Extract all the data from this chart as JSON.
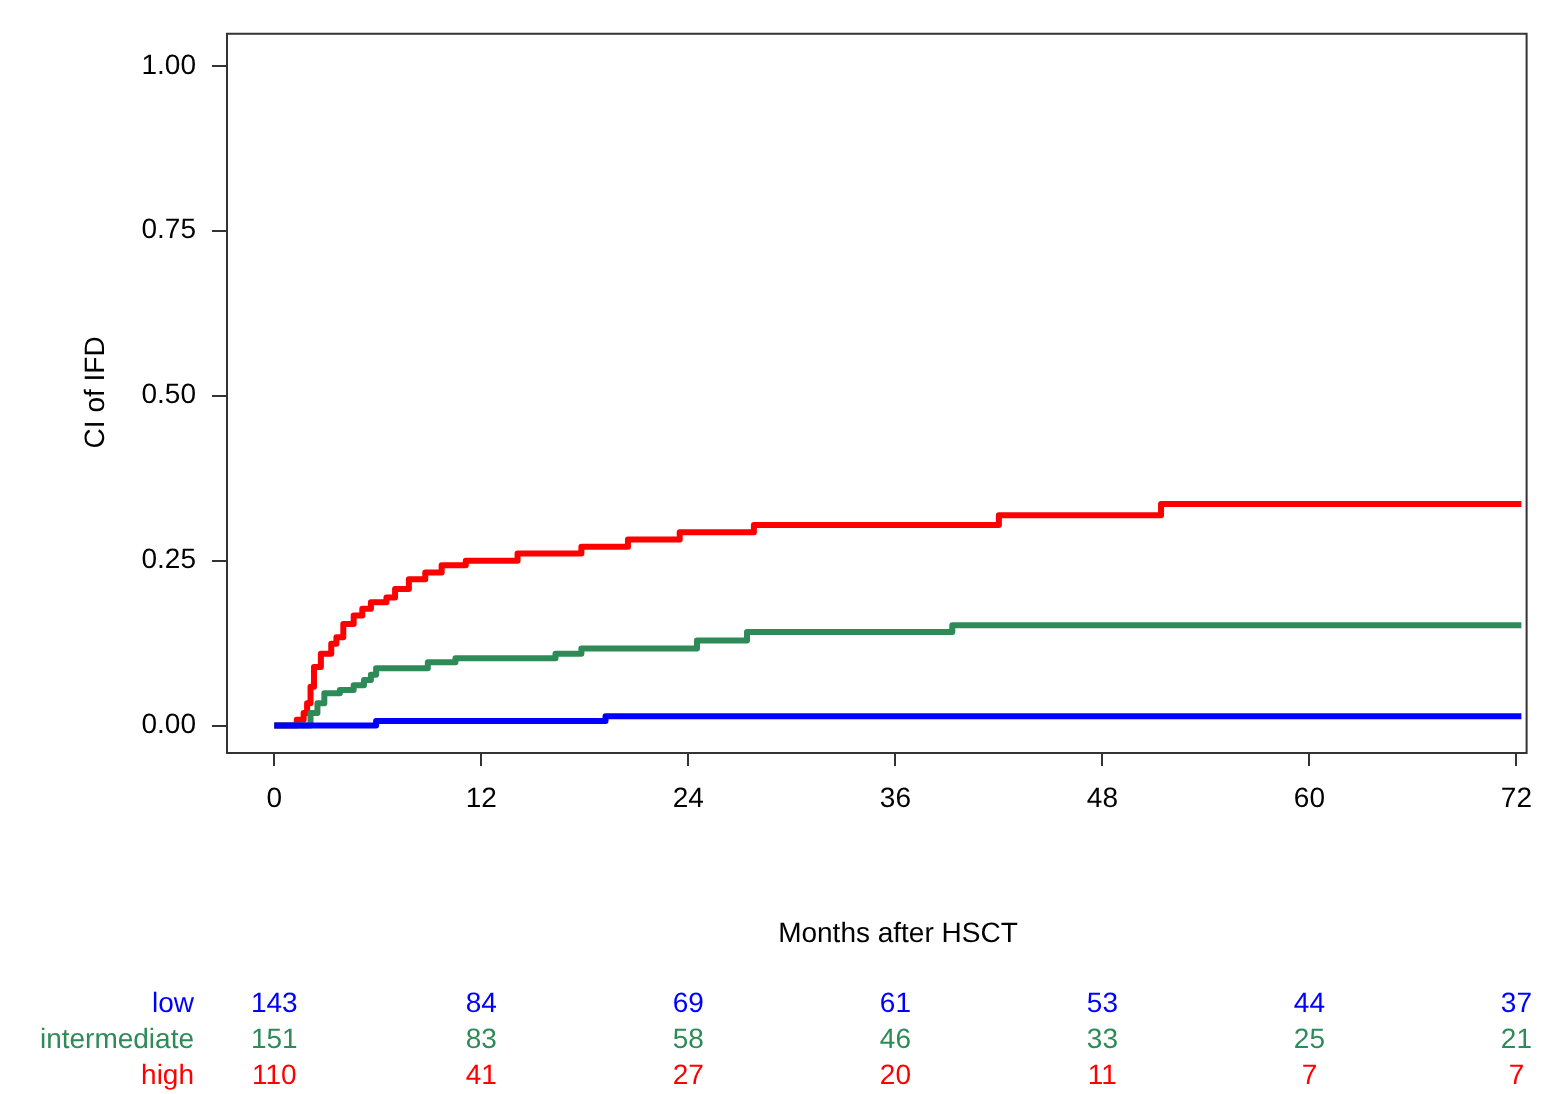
{
  "chart_data": {
    "type": "step",
    "xlabel": "Months after HSCT",
    "ylabel": "CI of IFD",
    "xlim": [
      -2.8,
      72.3
    ],
    "ylim": [
      -0.04,
      1.05
    ],
    "xticks": [
      0,
      12,
      24,
      36,
      48,
      60,
      72
    ],
    "yticks": [
      {
        "value": 0,
        "label": "0.00"
      },
      {
        "value": 0.25,
        "label": "0.25"
      },
      {
        "value": 0.5,
        "label": "0.50"
      },
      {
        "value": 0.75,
        "label": "0.75"
      },
      {
        "value": 1,
        "label": "1.00"
      }
    ],
    "grid": false,
    "legend": false,
    "marker": "none",
    "line_style": "solid",
    "series": [
      {
        "name": "low",
        "color": "#0000ff",
        "x": [
          0,
          5.9,
          19.2,
          72.3
        ],
        "values": [
          0,
          0.007,
          0.014,
          0.014
        ]
      },
      {
        "name": "intermediate",
        "color": "#2e8b57",
        "x": [
          0,
          1.7,
          2.1,
          2.5,
          2.9,
          3.8,
          4.6,
          5.2,
          5.6,
          5.9,
          8.9,
          10.5,
          16.3,
          17.8,
          24.5,
          27.4,
          39.3,
          72.3
        ],
        "values": [
          0,
          0,
          0.019,
          0.034,
          0.049,
          0.054,
          0.061,
          0.069,
          0.077,
          0.087,
          0.096,
          0.102,
          0.109,
          0.117,
          0.129,
          0.142,
          0.152,
          0.152
        ]
      },
      {
        "name": "high",
        "color": "#ff0000",
        "x": [
          0,
          1.3,
          1.7,
          1.9,
          2.1,
          2.3,
          2.7,
          3.3,
          3.6,
          4.0,
          4.6,
          5.1,
          5.6,
          6.5,
          7.0,
          7.8,
          8.75,
          9.7,
          11.1,
          14.1,
          17.8,
          20.5,
          23.5,
          27.8,
          42.0,
          51.4,
          72.3
        ],
        "values": [
          0,
          0.009,
          0.019,
          0.034,
          0.059,
          0.089,
          0.109,
          0.124,
          0.134,
          0.154,
          0.167,
          0.177,
          0.187,
          0.194,
          0.207,
          0.222,
          0.232,
          0.243,
          0.25,
          0.261,
          0.271,
          0.282,
          0.293,
          0.304,
          0.319,
          0.336,
          0.336
        ]
      }
    ],
    "annotations": [
      "143",
      "84",
      "69",
      "61",
      "53",
      "44",
      "37",
      "151",
      "83",
      "58",
      "46",
      "33",
      "25",
      "21",
      "110",
      "41",
      "27",
      "20",
      "11",
      "7",
      "7"
    ]
  }
}
